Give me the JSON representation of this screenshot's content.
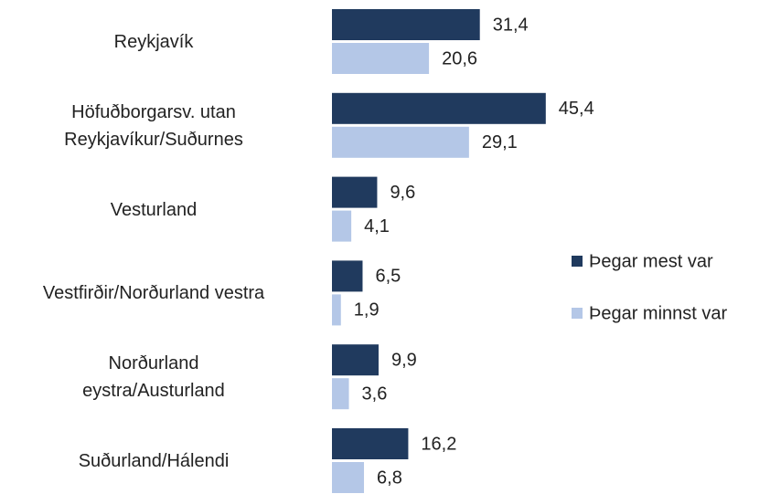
{
  "chart_data": {
    "type": "bar",
    "orientation": "horizontal",
    "categories": [
      "Reykjavík",
      "Höfuðborgarsv. utan\nReykjavíkur/Suðurnes",
      "Vesturland",
      "Vestfirðir/Norðurland vestra",
      "Norðurland\neystra/Austurland",
      "Suðurland/Hálendi"
    ],
    "series": [
      {
        "name": "Þegar mest var",
        "color": "#203a5e",
        "values": [
          31.4,
          45.4,
          9.6,
          6.5,
          9.9,
          16.2
        ],
        "value_labels": [
          "31,4",
          "45,4",
          "9,6",
          "6,5",
          "9,9",
          "16,2"
        ]
      },
      {
        "name": "Þegar minnst var",
        "color": "#b4c7e7",
        "values": [
          20.6,
          29.1,
          4.1,
          1.9,
          3.6,
          6.8
        ],
        "value_labels": [
          "20,6",
          "29,1",
          "4,1",
          "1,9",
          "3,6",
          "6,8"
        ]
      }
    ],
    "legend": "right"
  }
}
